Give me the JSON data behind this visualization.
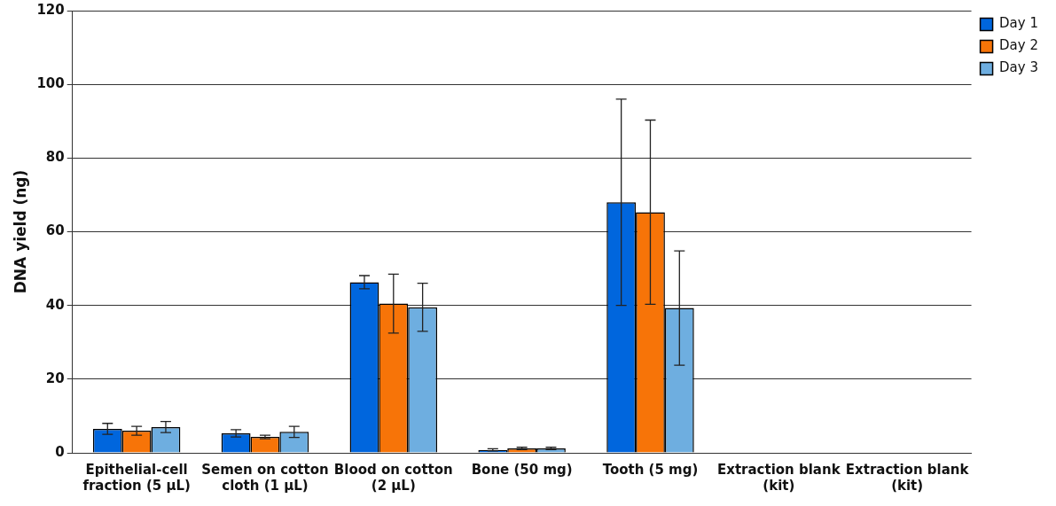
{
  "chart_data": {
    "type": "bar",
    "ylabel": "DNA yield (ng)",
    "categories": [
      "Epithelial-cell fraction (5 µL)",
      "Semen on cotton cloth (1 µL)",
      "Blood on cotton (2 µL)",
      "Bone (50 mg)",
      "Tooth (5 mg)",
      "Extraction blank (kit)",
      "Extraction blank (kit)"
    ],
    "series": [
      {
        "name": "Day 1",
        "color": "#0066dd",
        "values": [
          6.5,
          5.3,
          46.3,
          0.8,
          68,
          0,
          0
        ],
        "errors": [
          1.5,
          1,
          1.8,
          0.3,
          28,
          null,
          null
        ]
      },
      {
        "name": "Day 2",
        "color": "#f77408",
        "values": [
          6,
          4.3,
          40.5,
          1.2,
          65.3,
          0,
          0
        ],
        "errors": [
          1.2,
          0.5,
          8,
          0.3,
          25,
          null,
          null
        ]
      },
      {
        "name": "Day 3",
        "color": "#6eaee0",
        "values": [
          7,
          5.7,
          39.5,
          1.2,
          39.3,
          0,
          0
        ],
        "errors": [
          1.5,
          1.5,
          6.5,
          0.3,
          15.5,
          null,
          null
        ]
      }
    ],
    "ylim": [
      0,
      120
    ],
    "yticks": [
      0,
      20,
      40,
      60,
      80,
      100,
      120
    ],
    "grid": "y",
    "legend": "top right"
  }
}
